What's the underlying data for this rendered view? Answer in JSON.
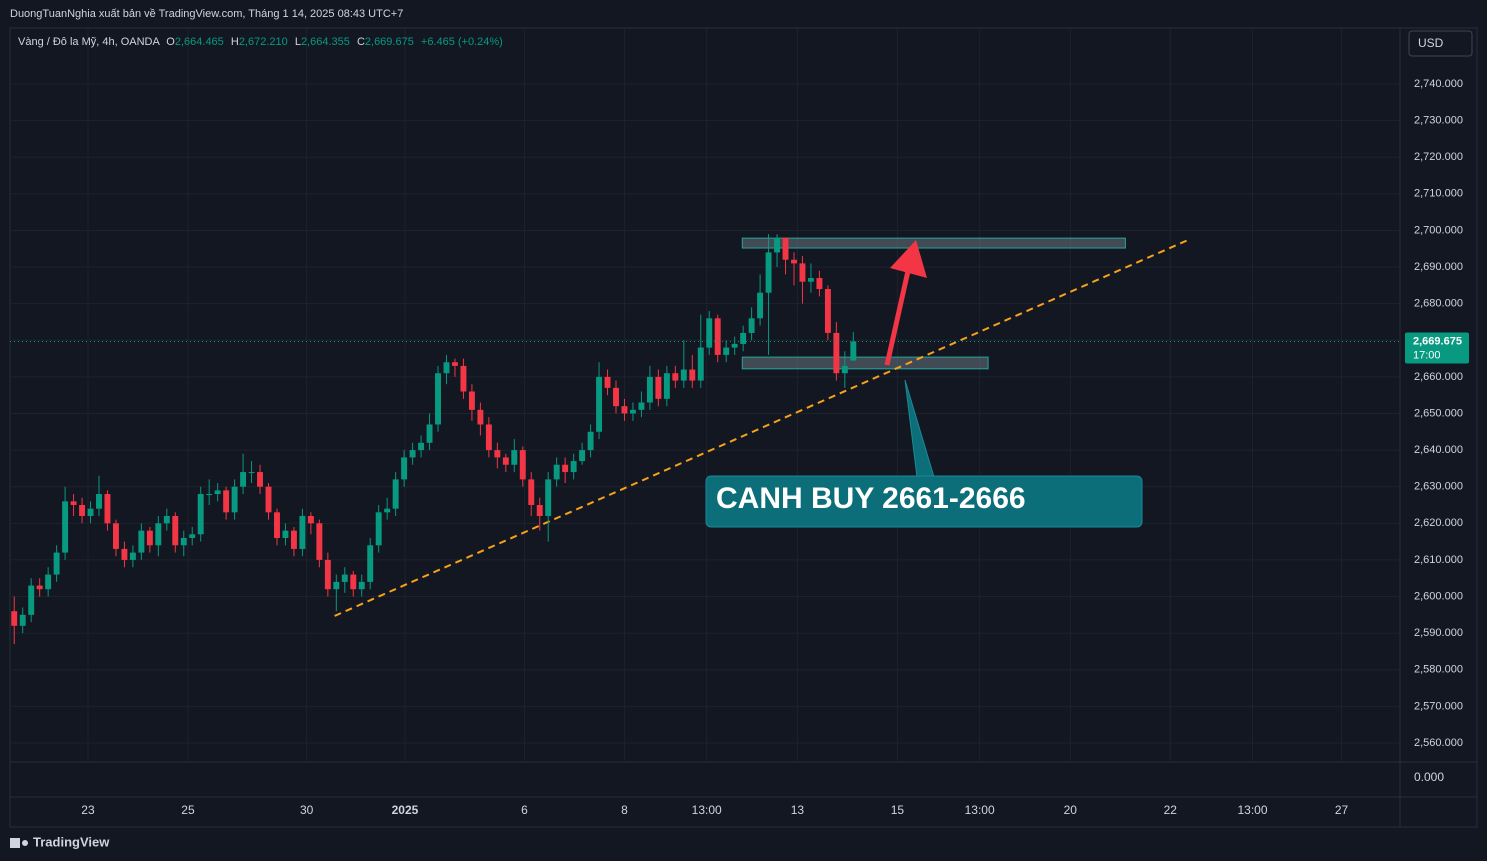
{
  "header": {
    "publisher": "DuongTuanNghia xuất bản về TradingView.com, Tháng 1 14, 2025 08:43 UTC+7",
    "currency": "USD",
    "brand": "TradingView"
  },
  "chart_data": {
    "type": "candlestick",
    "legend": {
      "symbol": "Vàng / Đô la Mỹ, 4h, OANDA",
      "o_key": "O",
      "o": "2,664.465",
      "h_key": "H",
      "h": "2,672.210",
      "l_key": "L",
      "l": "2,664.355",
      "c_key": "C",
      "c": "2,669.675",
      "change": "+6.465 (+0.24%)"
    },
    "up_color": "#089981",
    "down_color": "#f23645",
    "open": [
      2596,
      2592,
      2595,
      2603,
      2602,
      2606,
      2612,
      2626,
      2625,
      2622,
      2624,
      2628,
      2620,
      2613,
      2610,
      2612,
      2618,
      2614,
      2620,
      2622,
      2614,
      2616,
      2617,
      2628,
      2628,
      2629,
      2623,
      2630,
      2634,
      2634,
      2630,
      2623,
      2616,
      2618,
      2613,
      2622,
      2620,
      2610,
      2602,
      2604,
      2606,
      2602,
      2604,
      2614,
      2623,
      2624,
      2632,
      2638,
      2640,
      2642,
      2647,
      2661,
      2664,
      2663,
      2656,
      2651,
      2647,
      2640,
      2638,
      2636,
      2640,
      2632,
      2625,
      2622,
      2632,
      2636,
      2634,
      2637,
      2640,
      2645,
      2660,
      2657,
      2652,
      2650,
      2651,
      2653,
      2660,
      2654,
      2661,
      2659,
      2662,
      2659,
      2668,
      2676,
      2666,
      2668,
      2669,
      2672,
      2676,
      2683,
      2694,
      2698,
      2692,
      2691,
      2686,
      2687,
      2684,
      2672,
      2661,
      2664.465
    ],
    "high": [
      2600,
      2597,
      2605,
      2605,
      2608,
      2614,
      2630,
      2628,
      2627,
      2626,
      2633,
      2629,
      2621,
      2615,
      2614,
      2620,
      2619,
      2622,
      2624,
      2623,
      2618,
      2619,
      2630,
      2632,
      2631,
      2630,
      2632,
      2639,
      2637,
      2636,
      2631,
      2624,
      2620,
      2619,
      2624,
      2623,
      2621,
      2612,
      2606,
      2608,
      2607,
      2606,
      2616,
      2625,
      2627,
      2634,
      2640,
      2642,
      2644,
      2650,
      2663,
      2666,
      2665,
      2665,
      2658,
      2653,
      2649,
      2642,
      2639,
      2643,
      2641,
      2634,
      2627,
      2634,
      2638,
      2638,
      2639,
      2642,
      2647,
      2664,
      2662,
      2659,
      2654,
      2653,
      2656,
      2663,
      2662,
      2663,
      2663,
      2670,
      2666,
      2677,
      2678,
      2677,
      2670,
      2671,
      2674,
      2679,
      2688,
      2699,
      2699,
      2698,
      2694,
      2693,
      2691,
      2689,
      2685,
      2675,
      2667,
      2672.21
    ],
    "low": [
      2587,
      2590,
      2593,
      2600,
      2600,
      2604,
      2610,
      2622,
      2620,
      2620,
      2622,
      2618,
      2611,
      2608,
      2608,
      2610,
      2612,
      2611,
      2618,
      2612,
      2611,
      2614,
      2615,
      2625,
      2626,
      2621,
      2621,
      2628,
      2631,
      2628,
      2621,
      2614,
      2614,
      2611,
      2611,
      2617,
      2608,
      2600,
      2596,
      2601,
      2600,
      2600,
      2602,
      2612,
      2621,
      2622,
      2630,
      2636,
      2638,
      2640,
      2645,
      2658,
      2660,
      2654,
      2648,
      2644,
      2638,
      2635,
      2634,
      2634,
      2630,
      2622,
      2618,
      2615,
      2630,
      2631,
      2632,
      2636,
      2638,
      2643,
      2655,
      2650,
      2648,
      2648,
      2649,
      2651,
      2652,
      2652,
      2657,
      2657,
      2657,
      2657,
      2666,
      2664,
      2664,
      2666,
      2667,
      2670,
      2674,
      2666,
      2690,
      2688,
      2685,
      2680,
      2683,
      2682,
      2670,
      2659,
      2657,
      2664.355
    ],
    "close": [
      2592,
      2595,
      2603,
      2602,
      2606,
      2612,
      2626,
      2625,
      2622,
      2624,
      2628,
      2620,
      2613,
      2610,
      2612,
      2618,
      2614,
      2620,
      2622,
      2614,
      2616,
      2617,
      2628,
      2628,
      2629,
      2623,
      2630,
      2634,
      2634,
      2630,
      2623,
      2616,
      2618,
      2613,
      2622,
      2620,
      2610,
      2602,
      2604,
      2606,
      2602,
      2604,
      2614,
      2623,
      2624,
      2632,
      2638,
      2640,
      2642,
      2647,
      2661,
      2664,
      2663,
      2656,
      2651,
      2647,
      2640,
      2638,
      2636,
      2640,
      2632,
      2625,
      2622,
      2632,
      2636,
      2634,
      2637,
      2640,
      2645,
      2660,
      2657,
      2652,
      2650,
      2651,
      2653,
      2660,
      2654,
      2661,
      2659,
      2662,
      2659,
      2668,
      2676,
      2666,
      2668,
      2669,
      2672,
      2676,
      2683,
      2694,
      2698,
      2692,
      2691,
      2686,
      2687,
      2684,
      2672,
      2661,
      2663,
      2669.675
    ],
    "last_price_label": "2,669.675",
    "countdown": "17:00",
    "xlim": [
      -0.5,
      163.5
    ],
    "xticks": [
      {
        "value": 8.7,
        "label": "23"
      },
      {
        "value": 20.5,
        "label": "25"
      },
      {
        "value": 34.5,
        "label": "30"
      },
      {
        "value": 46.1,
        "label": "2025"
      },
      {
        "value": 60.2,
        "label": "6"
      },
      {
        "value": 72,
        "label": "8"
      },
      {
        "value": 81.7,
        "label": "13:00"
      },
      {
        "value": 92.4,
        "label": "13"
      },
      {
        "value": 104.2,
        "label": "15"
      },
      {
        "value": 113.9,
        "label": "13:00"
      },
      {
        "value": 124.6,
        "label": "20"
      },
      {
        "value": 136.4,
        "label": "22"
      },
      {
        "value": 146.1,
        "label": "13:00"
      },
      {
        "value": 156.6,
        "label": "27"
      }
    ],
    "ylim": [
      2554.8,
      2755.3
    ],
    "yticks": [
      {
        "value": 2560,
        "label": "2,560.000"
      },
      {
        "value": 2570,
        "label": "2,570.000"
      },
      {
        "value": 2580,
        "label": "2,580.000"
      },
      {
        "value": 2590,
        "label": "2,590.000"
      },
      {
        "value": 2600,
        "label": "2,600.000"
      },
      {
        "value": 2610,
        "label": "2,610.000"
      },
      {
        "value": 2620,
        "label": "2,620.000"
      },
      {
        "value": 2630,
        "label": "2,630.000"
      },
      {
        "value": 2640,
        "label": "2,640.000"
      },
      {
        "value": 2650,
        "label": "2,650.000"
      },
      {
        "value": 2660,
        "label": "2,660.000"
      },
      {
        "value": 2670,
        "label": "2,670.000"
      },
      {
        "value": 2680,
        "label": "2,680.000"
      },
      {
        "value": 2690,
        "label": "2,690.000"
      },
      {
        "value": 2700,
        "label": "2,700.000"
      },
      {
        "value": 2710,
        "label": "2,710.000"
      },
      {
        "value": 2720,
        "label": "2,720.000"
      },
      {
        "value": 2730,
        "label": "2,730.000"
      },
      {
        "value": 2740,
        "label": "2,740.000"
      }
    ],
    "lower_pane_label": "0.000",
    "grid": true,
    "zones": [
      {
        "top": 2697.9,
        "bottom": 2695.2,
        "start": 85.9,
        "end": 131.1
      },
      {
        "top": 2665.4,
        "bottom": 2662.2,
        "start": 85.9,
        "end": 114.9
      }
    ],
    "trendline": {
      "x": [
        37.8,
        138.5
      ],
      "y": [
        2594.7,
        2697.4
      ],
      "color": "#f7a21b"
    },
    "callout": "CANH BUY 2661-2666"
  }
}
